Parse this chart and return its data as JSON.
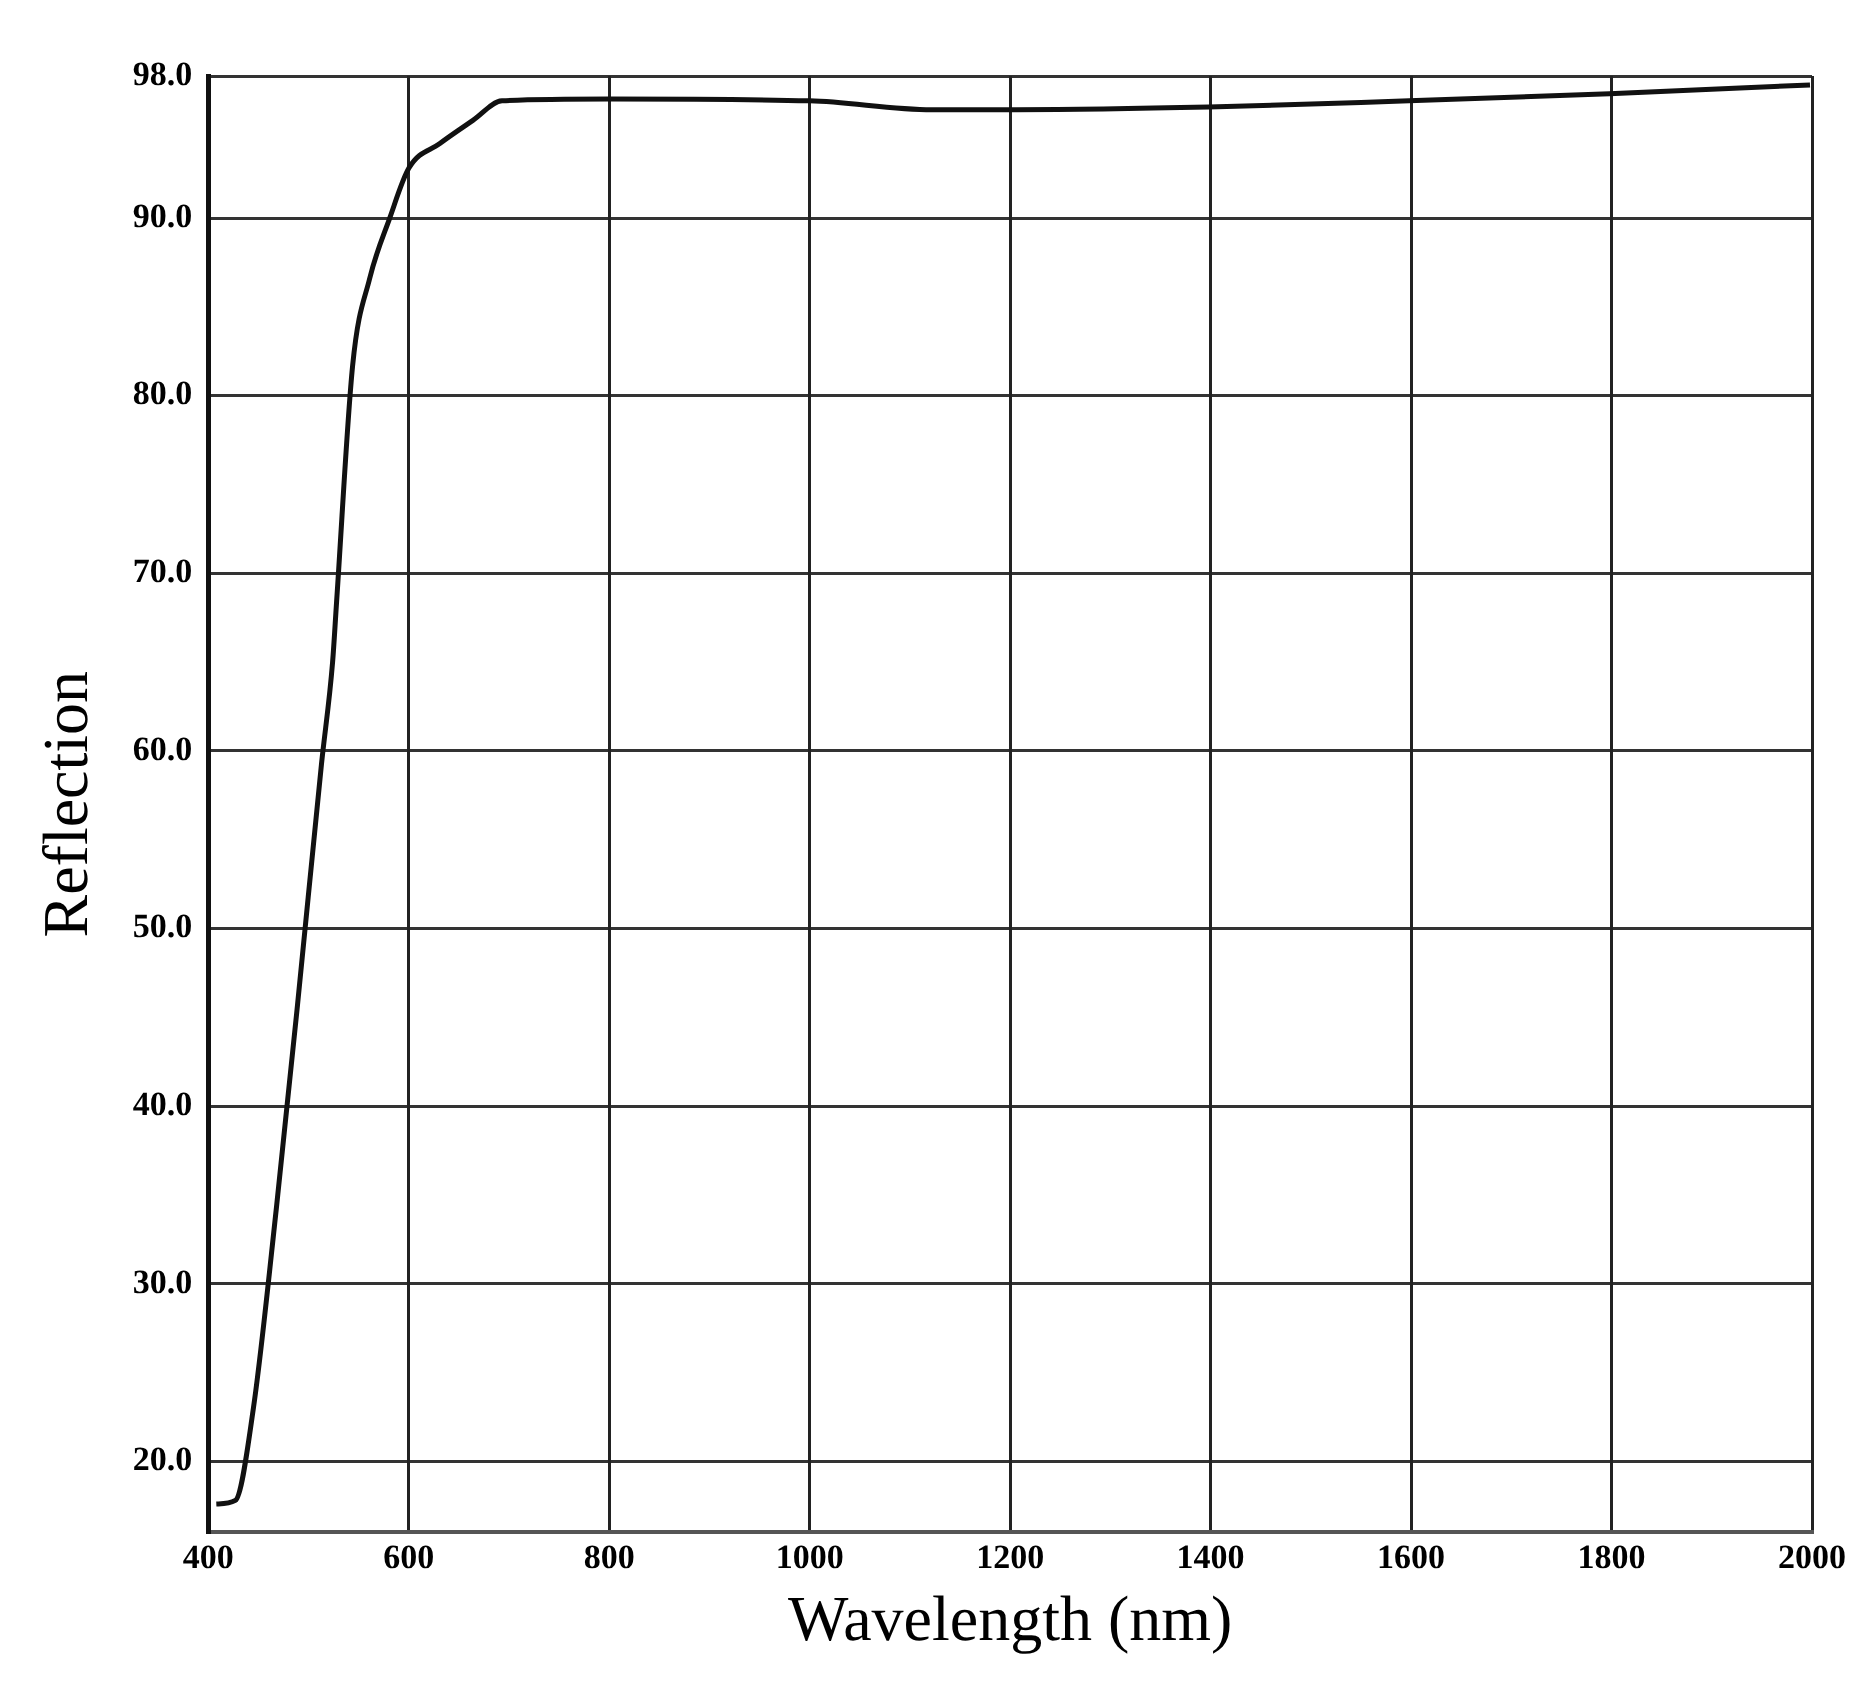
{
  "chart_data": {
    "type": "line",
    "xlabel": "Wavelength (nm)",
    "ylabel": "Reflection",
    "xlim": [
      400,
      2000
    ],
    "xticks": [
      400,
      600,
      800,
      1000,
      1200,
      1400,
      1600,
      1800,
      2000
    ],
    "ylim": [
      16,
      98
    ],
    "yticks": [
      {
        "value": 20,
        "label": "20.0"
      },
      {
        "value": 30,
        "label": "30.0"
      },
      {
        "value": 40,
        "label": "40.0"
      },
      {
        "value": 50,
        "label": "50.0"
      },
      {
        "value": 60,
        "label": "60.0"
      },
      {
        "value": 70,
        "label": "70.0"
      },
      {
        "value": 80,
        "label": "80.0"
      },
      {
        "value": 90,
        "label": "90.0"
      },
      {
        "value": 98,
        "label": "98.0"
      }
    ],
    "grid": true,
    "legend": false,
    "marker": "none",
    "line_style": "solid",
    "series": [
      {
        "color": "#111111",
        "x": [
          408,
          427,
          445,
          468,
          489,
          513,
          524,
          528,
          544,
          561,
          581,
          600,
          631,
          664,
          693,
          800,
          1000,
          1122,
          1198,
          1398,
          1598,
          1798,
          1998
        ],
        "values": [
          17.6,
          17.8,
          23,
          34.3,
          45.7,
          59.3,
          65,
          68.4,
          81.7,
          86.6,
          90,
          92.8,
          94.2,
          95.5,
          96.6,
          96.7,
          96.6,
          96.1,
          96.1,
          96.25,
          96.6,
          97,
          97.5
        ]
      }
    ]
  }
}
